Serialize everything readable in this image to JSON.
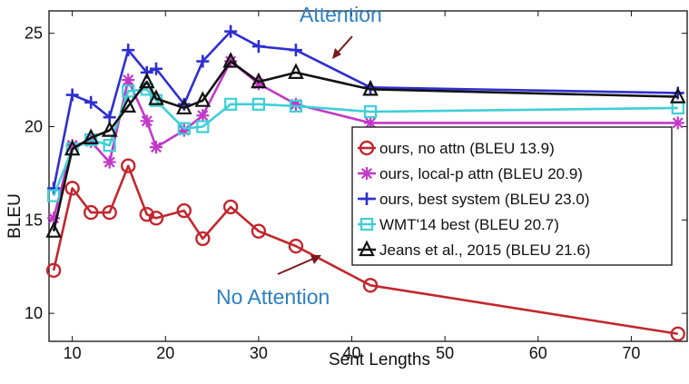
{
  "chart_data": {
    "type": "line",
    "xlabel": "Sent Lengths",
    "ylabel": "BLEU",
    "xlim": [
      7.5,
      76
    ],
    "ylim": [
      8.5,
      26.2
    ],
    "xticks": [
      10,
      20,
      30,
      40,
      50,
      60,
      70
    ],
    "yticks": [
      10,
      15,
      20,
      25
    ],
    "grid": false,
    "legend_position": "right",
    "series": [
      {
        "name": "ours, no attn (BLEU 13.9)",
        "color": "#c1272d",
        "marker": "circle",
        "x": [
          8,
          10,
          12,
          14,
          16,
          18,
          19,
          22,
          24,
          27,
          30,
          34,
          42,
          75
        ],
        "y": [
          12.3,
          16.7,
          15.4,
          15.4,
          17.9,
          15.3,
          15.1,
          15.5,
          14.0,
          15.7,
          14.4,
          13.6,
          11.5,
          8.9
        ]
      },
      {
        "name": "ours, local-p attn (BLEU 20.9)",
        "color": "#c238c8",
        "marker": "asterisk",
        "x": [
          8,
          10,
          12,
          14,
          16,
          18,
          19,
          22,
          24,
          27,
          30,
          34,
          42,
          75
        ],
        "y": [
          15.1,
          19.0,
          19.2,
          18.1,
          22.5,
          20.3,
          18.9,
          19.8,
          20.6,
          23.5,
          22.3,
          21.2,
          20.2,
          20.2
        ]
      },
      {
        "name": "ours, best system (BLEU 23.0)",
        "color": "#2f2fcf",
        "marker": "plus",
        "x": [
          8,
          10,
          12,
          14,
          16,
          18,
          19,
          22,
          24,
          27,
          30,
          34,
          42,
          75
        ],
        "y": [
          16.7,
          21.7,
          21.3,
          20.5,
          24.1,
          22.9,
          23.1,
          21.2,
          23.5,
          25.1,
          24.3,
          24.1,
          22.1,
          21.8
        ]
      },
      {
        "name": "WMT'14 best (BLEU 20.7)",
        "color": "#3ecfd6",
        "marker": "square",
        "x": [
          8,
          10,
          12,
          14,
          16,
          18,
          19,
          22,
          24,
          27,
          30,
          34,
          42,
          75
        ],
        "y": [
          16.3,
          18.8,
          19.3,
          19.0,
          21.9,
          22.0,
          21.4,
          19.9,
          20.0,
          21.2,
          21.2,
          21.1,
          20.8,
          21.0
        ]
      },
      {
        "name": "Jeans et al., 2015 (BLEU 21.6)",
        "color": "#111111",
        "marker": "triangle",
        "x": [
          8,
          10,
          12,
          14,
          16,
          18,
          19,
          22,
          24,
          27,
          30,
          34,
          42,
          75
        ],
        "y": [
          14.4,
          18.8,
          19.4,
          19.8,
          21.1,
          22.4,
          21.5,
          21.0,
          21.4,
          23.5,
          22.4,
          22.9,
          22.0,
          21.6
        ]
      }
    ]
  },
  "annotations": {
    "attention_label": "Attention",
    "no_attention_label": "No Attention",
    "label_color": "#2d7fc2",
    "arrow_color": "#7a1a1a"
  }
}
